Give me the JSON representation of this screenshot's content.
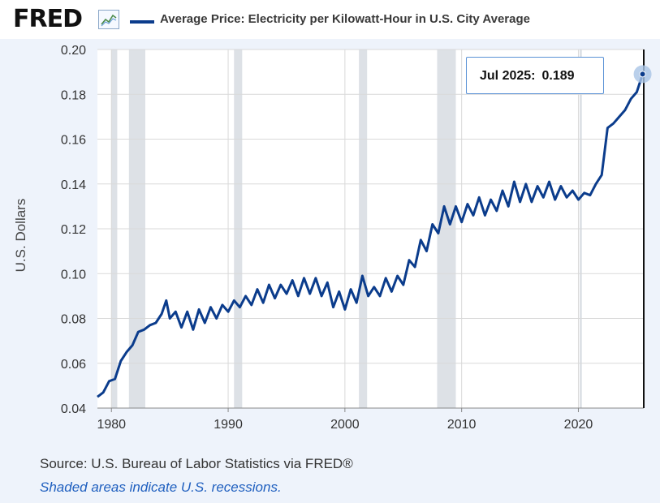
{
  "header": {
    "logo": "FRED",
    "logo_icon": "line-chart-icon",
    "legend_label": "Average Price: Electricity per Kilowatt-Hour in U.S. City Average"
  },
  "tooltip": {
    "date": "Jul 2025:",
    "value": "0.189"
  },
  "footer": {
    "source": "Source: U.S. Bureau of Labor Statistics via FRED®",
    "note": "Shaded areas indicate U.S. recessions."
  },
  "colors": {
    "series": "#0b3c8c",
    "recession": "#dde1e6",
    "accent": "#1f5fbf"
  },
  "chart_data": {
    "type": "line",
    "title": "Average Price: Electricity per Kilowatt-Hour in U.S. City Average",
    "ylabel": "U.S. Dollars",
    "xlabel": "",
    "xlim": [
      1978.8,
      2025.6
    ],
    "ylim": [
      0.04,
      0.2
    ],
    "xticks": [
      1980,
      1990,
      2000,
      2010,
      2020
    ],
    "yticks": [
      "0.04",
      "0.06",
      "0.08",
      "0.10",
      "0.12",
      "0.14",
      "0.16",
      "0.18",
      "0.20"
    ],
    "grid": true,
    "recessions": [
      [
        1980.0,
        1980.5
      ],
      [
        1981.5,
        1982.9
      ],
      [
        1990.5,
        1991.2
      ],
      [
        2001.2,
        2001.9
      ],
      [
        2007.9,
        2009.5
      ],
      [
        2020.1,
        2020.3
      ]
    ],
    "series": [
      {
        "name": "Average Price: Electricity per Kilowatt-Hour in U.S. City Average",
        "x": [
          1978.8,
          1979.3,
          1979.8,
          1980.3,
          1980.8,
          1981.3,
          1981.8,
          1982.3,
          1982.8,
          1983.3,
          1983.8,
          1984.3,
          1984.7,
          1985.0,
          1985.5,
          1986.0,
          1986.5,
          1987.0,
          1987.5,
          1988.0,
          1988.5,
          1989.0,
          1989.5,
          1990.0,
          1990.5,
          1991.0,
          1991.5,
          1992.0,
          1992.5,
          1993.0,
          1993.5,
          1994.0,
          1994.5,
          1995.0,
          1995.5,
          1996.0,
          1996.5,
          1997.0,
          1997.5,
          1998.0,
          1998.5,
          1999.0,
          1999.5,
          2000.0,
          2000.5,
          2001.0,
          2001.5,
          2002.0,
          2002.5,
          2003.0,
          2003.5,
          2004.0,
          2004.5,
          2005.0,
          2005.5,
          2006.0,
          2006.5,
          2007.0,
          2007.5,
          2008.0,
          2008.5,
          2009.0,
          2009.5,
          2010.0,
          2010.5,
          2011.0,
          2011.5,
          2012.0,
          2012.5,
          2013.0,
          2013.5,
          2014.0,
          2014.5,
          2015.0,
          2015.5,
          2016.0,
          2016.5,
          2017.0,
          2017.5,
          2018.0,
          2018.5,
          2019.0,
          2019.5,
          2020.0,
          2020.5,
          2021.0,
          2021.5,
          2022.0,
          2022.5,
          2023.0,
          2023.5,
          2024.0,
          2024.5,
          2025.0,
          2025.5
        ],
        "values": [
          0.045,
          0.047,
          0.052,
          0.053,
          0.061,
          0.065,
          0.068,
          0.074,
          0.075,
          0.077,
          0.078,
          0.082,
          0.088,
          0.08,
          0.083,
          0.076,
          0.083,
          0.075,
          0.084,
          0.078,
          0.085,
          0.08,
          0.086,
          0.083,
          0.088,
          0.085,
          0.09,
          0.086,
          0.093,
          0.087,
          0.095,
          0.089,
          0.095,
          0.091,
          0.097,
          0.09,
          0.098,
          0.091,
          0.098,
          0.09,
          0.096,
          0.085,
          0.092,
          0.084,
          0.093,
          0.087,
          0.099,
          0.09,
          0.094,
          0.09,
          0.098,
          0.092,
          0.099,
          0.095,
          0.106,
          0.103,
          0.115,
          0.11,
          0.122,
          0.118,
          0.13,
          0.122,
          0.13,
          0.123,
          0.131,
          0.126,
          0.134,
          0.126,
          0.133,
          0.128,
          0.137,
          0.13,
          0.141,
          0.132,
          0.14,
          0.132,
          0.139,
          0.134,
          0.141,
          0.133,
          0.139,
          0.134,
          0.137,
          0.133,
          0.136,
          0.135,
          0.14,
          0.144,
          0.165,
          0.167,
          0.17,
          0.173,
          0.178,
          0.181,
          0.189
        ]
      }
    ],
    "highlight": {
      "x": 2025.5,
      "y": 0.189,
      "label": "Jul 2025",
      "value": "0.189"
    }
  }
}
